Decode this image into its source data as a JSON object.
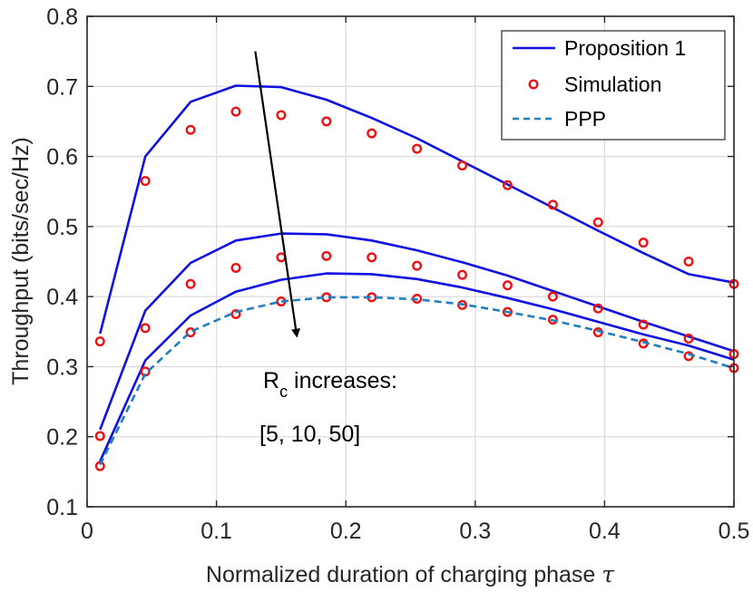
{
  "chart_data": {
    "type": "line",
    "xlabel": "Normalized duration of charging phase",
    "xlabel_symbol": "τ",
    "ylabel": "Throughput (bits/sec/Hz)",
    "xlim": [
      0,
      0.5
    ],
    "ylim": [
      0.1,
      0.8
    ],
    "xticks": [
      0,
      0.1,
      0.2,
      0.3,
      0.4,
      0.5
    ],
    "xtick_labels": [
      "0",
      "0.1",
      "0.2",
      "0.3",
      "0.4",
      "0.5"
    ],
    "yticks": [
      0.1,
      0.2,
      0.3,
      0.4,
      0.5,
      0.6,
      0.7,
      0.8
    ],
    "ytick_labels": [
      "0.1",
      "0.2",
      "0.3",
      "0.4",
      "0.5",
      "0.6",
      "0.7",
      "0.8"
    ],
    "grid": true,
    "legend_position": "top-right",
    "legend": [
      "Proposition 1",
      "Simulation",
      "PPP"
    ],
    "colors": {
      "proposition": "#1010e0",
      "simulation": "#ee1111",
      "ppp": "#1f7fbf",
      "arrow": "#000000"
    },
    "series": [
      {
        "name": "Proposition 1 (Rc = 5)",
        "style": "solid",
        "x": [
          0.01,
          0.045,
          0.08,
          0.115,
          0.15,
          0.185,
          0.22,
          0.255,
          0.29,
          0.325,
          0.36,
          0.395,
          0.43,
          0.465,
          0.5
        ],
        "y": [
          0.347,
          0.6,
          0.678,
          0.701,
          0.699,
          0.681,
          0.655,
          0.626,
          0.593,
          0.56,
          0.527,
          0.494,
          0.462,
          0.432,
          0.42
        ]
      },
      {
        "name": "Proposition 1 (Rc = 10)",
        "style": "solid",
        "x": [
          0.01,
          0.045,
          0.08,
          0.115,
          0.15,
          0.185,
          0.22,
          0.255,
          0.29,
          0.325,
          0.36,
          0.395,
          0.43,
          0.465,
          0.5
        ],
        "y": [
          0.21,
          0.38,
          0.448,
          0.48,
          0.49,
          0.489,
          0.48,
          0.466,
          0.449,
          0.43,
          0.408,
          0.386,
          0.364,
          0.343,
          0.322
        ]
      },
      {
        "name": "Proposition 1 (Rc = 50)",
        "style": "solid",
        "x": [
          0.01,
          0.045,
          0.08,
          0.115,
          0.15,
          0.185,
          0.22,
          0.255,
          0.29,
          0.325,
          0.36,
          0.395,
          0.43,
          0.465,
          0.5
        ],
        "y": [
          0.165,
          0.309,
          0.373,
          0.407,
          0.424,
          0.433,
          0.432,
          0.425,
          0.413,
          0.398,
          0.382,
          0.364,
          0.346,
          0.33,
          0.31
        ]
      },
      {
        "name": "Simulation (Rc = 5)",
        "style": "markers",
        "x": [
          0.01,
          0.045,
          0.08,
          0.115,
          0.15,
          0.185,
          0.22,
          0.255,
          0.29,
          0.325,
          0.36,
          0.395,
          0.43,
          0.465,
          0.5
        ],
        "y": [
          0.336,
          0.565,
          0.638,
          0.664,
          0.659,
          0.65,
          0.633,
          0.611,
          0.587,
          0.559,
          0.531,
          0.506,
          0.477,
          0.45,
          0.418
        ]
      },
      {
        "name": "Simulation (Rc = 10)",
        "style": "markers",
        "x": [
          0.01,
          0.045,
          0.08,
          0.115,
          0.15,
          0.185,
          0.22,
          0.255,
          0.29,
          0.325,
          0.36,
          0.395,
          0.43,
          0.465,
          0.5
        ],
        "y": [
          0.201,
          0.355,
          0.418,
          0.441,
          0.456,
          0.458,
          0.456,
          0.444,
          0.431,
          0.416,
          0.4,
          0.383,
          0.36,
          0.34,
          0.318
        ]
      },
      {
        "name": "Simulation (Rc = 50)",
        "style": "markers",
        "x": [
          0.01,
          0.045,
          0.08,
          0.115,
          0.15,
          0.185,
          0.22,
          0.255,
          0.29,
          0.325,
          0.36,
          0.395,
          0.43,
          0.465,
          0.5
        ],
        "y": [
          0.158,
          0.293,
          0.349,
          0.375,
          0.393,
          0.399,
          0.399,
          0.397,
          0.388,
          0.378,
          0.367,
          0.349,
          0.333,
          0.315,
          0.298
        ]
      },
      {
        "name": "PPP",
        "style": "dashed",
        "x": [
          0.01,
          0.045,
          0.08,
          0.115,
          0.15,
          0.185,
          0.22,
          0.255,
          0.29,
          0.325,
          0.36,
          0.395,
          0.43,
          0.465,
          0.5
        ],
        "y": [
          0.16,
          0.29,
          0.35,
          0.378,
          0.393,
          0.399,
          0.399,
          0.396,
          0.389,
          0.378,
          0.366,
          0.351,
          0.335,
          0.318,
          0.298
        ]
      }
    ],
    "annotation": {
      "text_main": "R",
      "text_sub": "c",
      "text_rest": " increases:",
      "text_values": "[5, 10, 50]",
      "arrow_from": [
        0.13,
        0.75
      ],
      "arrow_to": [
        0.162,
        0.345
      ]
    }
  }
}
